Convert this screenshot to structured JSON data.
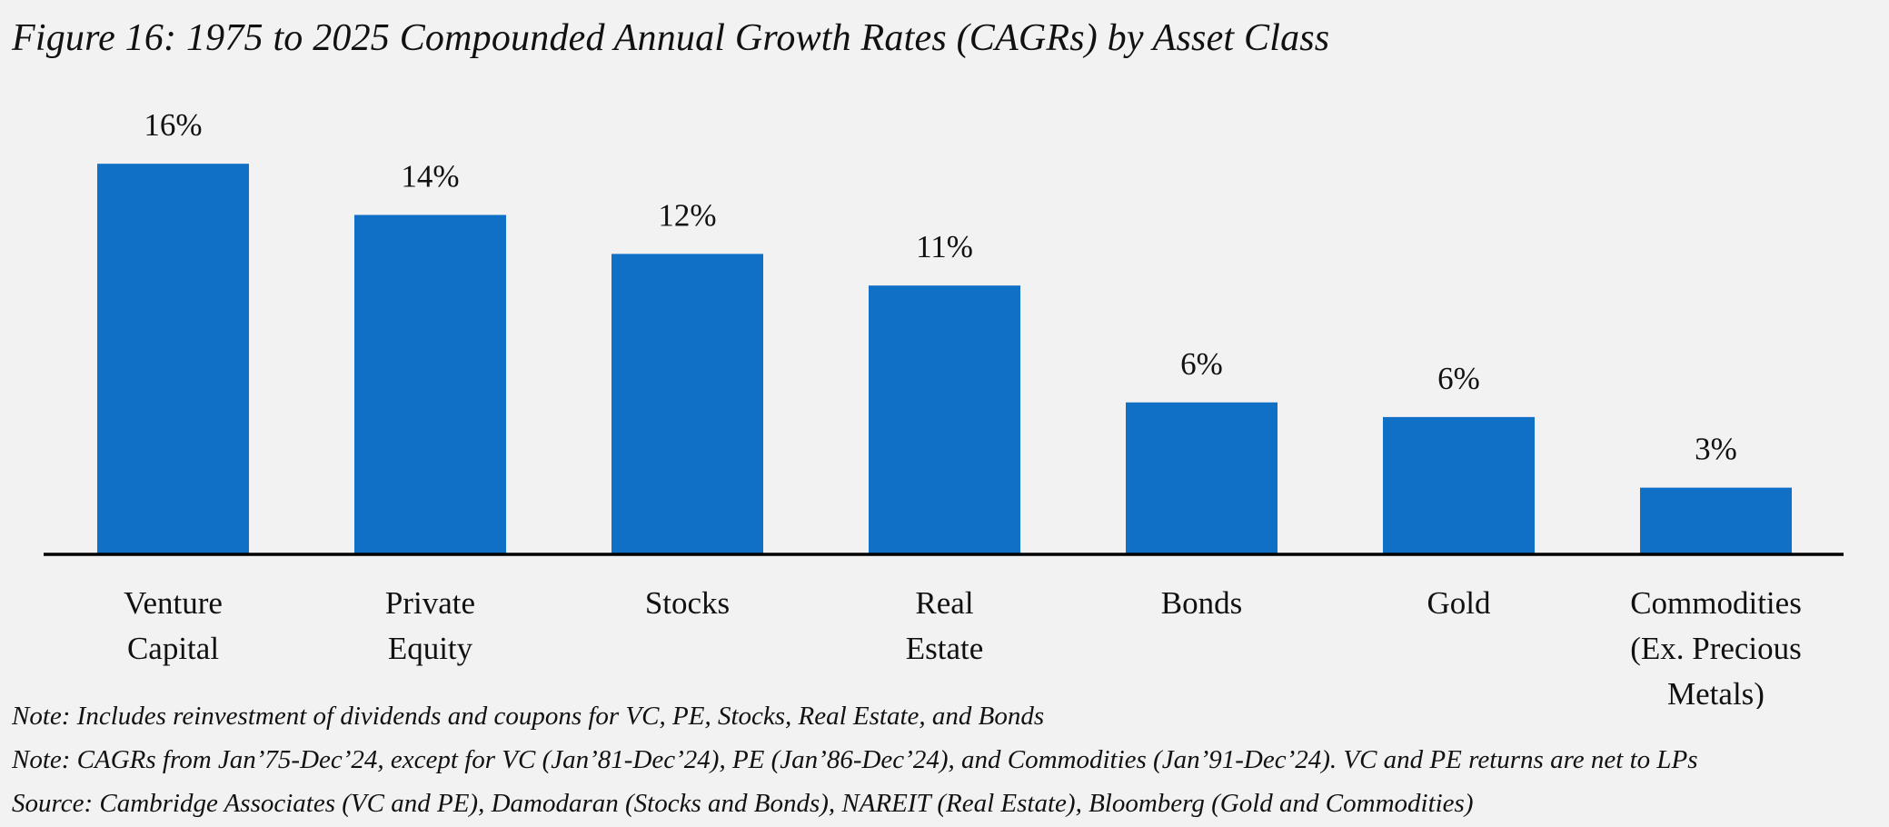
{
  "title": "Figure 16: 1975 to 2025 Compounded Annual Growth Rates (CAGRs) by Asset Class",
  "colors": {
    "bar": "#1070c6",
    "axis": "#000000",
    "background": "#f2f2f2",
    "text": "#111111"
  },
  "chart_data": {
    "type": "bar",
    "title": "Figure 16: 1975 to 2025 Compounded Annual Growth Rates (CAGRs) by Asset Class",
    "xlabel": "",
    "ylabel": "",
    "ylim": [
      0,
      17.5
    ],
    "grid": false,
    "legend": "none",
    "categories": [
      [
        "Venture",
        "Capital"
      ],
      [
        "Private",
        "Equity"
      ],
      [
        "Stocks"
      ],
      [
        "Real",
        "Estate"
      ],
      [
        "Bonds"
      ],
      [
        "Gold"
      ],
      [
        "Commodities",
        "(Ex. Precious",
        "Metals)"
      ]
    ],
    "category_names": [
      "Venture Capital",
      "Private Equity",
      "Stocks",
      "Real Estate",
      "Bonds",
      "Gold",
      "Commodities (Ex. Precious Metals)"
    ],
    "values": [
      16.0,
      13.9,
      12.3,
      11.0,
      6.2,
      5.6,
      2.7
    ],
    "data_labels": [
      "16%",
      "14%",
      "12%",
      "11%",
      "6%",
      "6%",
      "3%"
    ]
  },
  "notes": [
    "Note: Includes  reinvestment of dividends and coupons for VC, PE, Stocks, Real Estate, and Bonds",
    "Note: CAGRs from Jan’75-Dec’24, except for VC (Jan’81-Dec’24), PE (Jan’86-Dec’24), and Commodities (Jan’91-Dec’24). VC and PE returns are net to LPs",
    "Source: Cambridge Associates (VC and PE), Damodaran (Stocks and Bonds), NAREIT (Real Estate), Bloomberg (Gold and Commodities)"
  ]
}
